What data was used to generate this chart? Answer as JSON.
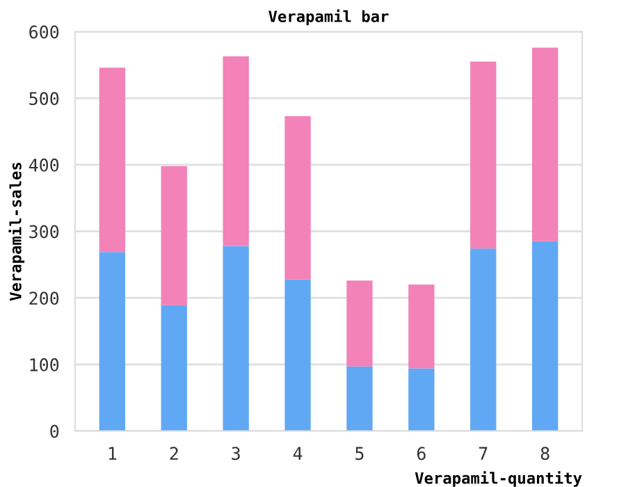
{
  "chart_data": {
    "type": "bar",
    "title": "Verapamil bar",
    "xlabel": "Verapamil-quantity",
    "ylabel": "Verapamil-sales",
    "categories": [
      "1",
      "2",
      "3",
      "4",
      "5",
      "6",
      "7",
      "8"
    ],
    "stacked": true,
    "series": [
      {
        "color": "#60a8f4",
        "values": [
          269,
          189,
          278,
          228,
          97,
          94,
          274,
          285
        ]
      },
      {
        "color": "#f282b8",
        "values": [
          277,
          209,
          285,
          245,
          129,
          126,
          281,
          291
        ]
      }
    ],
    "ylim": [
      0,
      600
    ],
    "yticks": [
      0,
      100,
      200,
      300,
      400,
      500,
      600
    ],
    "grid": "y"
  }
}
